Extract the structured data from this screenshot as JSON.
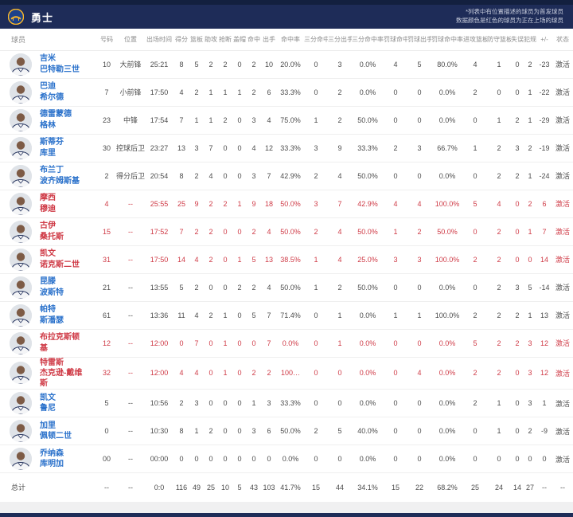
{
  "header": {
    "team": "勇士",
    "note_line1": "*列表中有位置描述的球员为首发球员",
    "note_line2": "数据颜色是红色的球员为正在上场的球员"
  },
  "colors": {
    "navy_bar": "#1e2c58",
    "active_red": "#cf3a46",
    "player_link_blue": "#2b72cb",
    "stat_text": "#4c4c4c"
  },
  "table": {
    "columns": [
      "球员",
      "号码",
      "位置",
      "出场时间",
      "得分",
      "篮板",
      "助攻",
      "抢断",
      "盖帽",
      "命中",
      "出手",
      "命中率",
      "三分命中",
      "三分出手",
      "三分命中率",
      "罚球命中",
      "罚球出手",
      "罚球命中率",
      "进攻篮板",
      "防守篮板",
      "失误",
      "犯规",
      "+/-",
      "状态"
    ],
    "rows": [
      {
        "name_lines": [
          "吉米",
          "巴特勒三世"
        ],
        "active": false,
        "stats": [
          "10",
          "大前锋",
          "25:21",
          "8",
          "5",
          "2",
          "2",
          "0",
          "2",
          "10",
          "20.0%",
          "0",
          "3",
          "0.0%",
          "4",
          "5",
          "80.0%",
          "4",
          "1",
          "0",
          "2",
          "-23",
          "激活"
        ]
      },
      {
        "name_lines": [
          "巴迪",
          "希尔德"
        ],
        "active": false,
        "stats": [
          "7",
          "小前锋",
          "17:50",
          "4",
          "2",
          "1",
          "1",
          "1",
          "2",
          "6",
          "33.3%",
          "0",
          "2",
          "0.0%",
          "0",
          "0",
          "0.0%",
          "2",
          "0",
          "0",
          "1",
          "-22",
          "激活"
        ]
      },
      {
        "name_lines": [
          "德雷蒙德",
          "格林"
        ],
        "active": false,
        "stats": [
          "23",
          "中锋",
          "17:54",
          "7",
          "1",
          "1",
          "2",
          "0",
          "3",
          "4",
          "75.0%",
          "1",
          "2",
          "50.0%",
          "0",
          "0",
          "0.0%",
          "0",
          "1",
          "2",
          "1",
          "-29",
          "激活"
        ]
      },
      {
        "name_lines": [
          "斯蒂芬",
          "库里"
        ],
        "active": false,
        "stats": [
          "30",
          "控球后卫",
          "23:27",
          "13",
          "3",
          "7",
          "0",
          "0",
          "4",
          "12",
          "33.3%",
          "3",
          "9",
          "33.3%",
          "2",
          "3",
          "66.7%",
          "1",
          "2",
          "3",
          "2",
          "-19",
          "激活"
        ]
      },
      {
        "name_lines": [
          "布兰丁",
          "波齐姆斯基"
        ],
        "active": false,
        "stats": [
          "2",
          "得分后卫",
          "20:54",
          "8",
          "2",
          "4",
          "0",
          "0",
          "3",
          "7",
          "42.9%",
          "2",
          "4",
          "50.0%",
          "0",
          "0",
          "0.0%",
          "0",
          "2",
          "2",
          "1",
          "-24",
          "激活"
        ]
      },
      {
        "name_lines": [
          "摩西",
          "穆迪"
        ],
        "active": true,
        "stats": [
          "4",
          "--",
          "25:55",
          "25",
          "9",
          "2",
          "2",
          "1",
          "9",
          "18",
          "50.0%",
          "3",
          "7",
          "42.9%",
          "4",
          "4",
          "100.0%",
          "5",
          "4",
          "0",
          "2",
          "6",
          "激活"
        ]
      },
      {
        "name_lines": [
          "古伊",
          "桑托斯"
        ],
        "active": true,
        "stats": [
          "15",
          "--",
          "17:52",
          "7",
          "2",
          "2",
          "0",
          "0",
          "2",
          "4",
          "50.0%",
          "2",
          "4",
          "50.0%",
          "1",
          "2",
          "50.0%",
          "0",
          "2",
          "0",
          "1",
          "7",
          "激活"
        ]
      },
      {
        "name_lines": [
          "凯文",
          "诺克斯二世"
        ],
        "active": true,
        "stats": [
          "31",
          "--",
          "17:50",
          "14",
          "4",
          "2",
          "0",
          "1",
          "5",
          "13",
          "38.5%",
          "1",
          "4",
          "25.0%",
          "3",
          "3",
          "100.0%",
          "2",
          "2",
          "0",
          "0",
          "14",
          "激活"
        ]
      },
      {
        "name_lines": [
          "昆滕",
          "波斯特"
        ],
        "active": false,
        "stats": [
          "21",
          "--",
          "13:55",
          "5",
          "2",
          "0",
          "0",
          "2",
          "2",
          "4",
          "50.0%",
          "1",
          "2",
          "50.0%",
          "0",
          "0",
          "0.0%",
          "0",
          "2",
          "3",
          "5",
          "-14",
          "激活"
        ]
      },
      {
        "name_lines": [
          "帕特",
          "斯潘瑟"
        ],
        "active": false,
        "stats": [
          "61",
          "--",
          "13:36",
          "11",
          "4",
          "2",
          "1",
          "0",
          "5",
          "7",
          "71.4%",
          "0",
          "1",
          "0.0%",
          "1",
          "1",
          "100.0%",
          "2",
          "2",
          "2",
          "1",
          "13",
          "激活"
        ]
      },
      {
        "name_lines": [
          "布拉克斯顿",
          "基"
        ],
        "active": true,
        "stats": [
          "12",
          "--",
          "12:00",
          "0",
          "7",
          "0",
          "1",
          "0",
          "0",
          "7",
          "0.0%",
          "0",
          "1",
          "0.0%",
          "0",
          "0",
          "0.0%",
          "5",
          "2",
          "2",
          "3",
          "12",
          "激活"
        ]
      },
      {
        "name_lines": [
          "特雷斯",
          "杰克逊-戴维",
          "斯"
        ],
        "active": true,
        "stats": [
          "32",
          "--",
          "12:00",
          "4",
          "4",
          "0",
          "1",
          "0",
          "2",
          "2",
          "100…",
          "0",
          "0",
          "0.0%",
          "0",
          "4",
          "0.0%",
          "2",
          "2",
          "0",
          "3",
          "12",
          "激活"
        ]
      },
      {
        "name_lines": [
          "凯文",
          "鲁尼"
        ],
        "active": false,
        "stats": [
          "5",
          "--",
          "10:56",
          "2",
          "3",
          "0",
          "0",
          "0",
          "1",
          "3",
          "33.3%",
          "0",
          "0",
          "0.0%",
          "0",
          "0",
          "0.0%",
          "2",
          "1",
          "0",
          "3",
          "1",
          "激活"
        ]
      },
      {
        "name_lines": [
          "加里",
          "佩顿二世"
        ],
        "active": false,
        "stats": [
          "0",
          "--",
          "10:30",
          "8",
          "1",
          "2",
          "0",
          "0",
          "3",
          "6",
          "50.0%",
          "2",
          "5",
          "40.0%",
          "0",
          "0",
          "0.0%",
          "0",
          "1",
          "0",
          "2",
          "-9",
          "激活"
        ]
      },
      {
        "name_lines": [
          "乔纳森",
          "库明加"
        ],
        "active": false,
        "stats": [
          "00",
          "--",
          "00:00",
          "0",
          "0",
          "0",
          "0",
          "0",
          "0",
          "0",
          "0.0%",
          "0",
          "0",
          "0.0%",
          "0",
          "0",
          "0.0%",
          "0",
          "0",
          "0",
          "0",
          "0",
          "激活"
        ]
      }
    ],
    "totals": {
      "label": "总计",
      "stats": [
        "--",
        "--",
        "0:0",
        "116",
        "49",
        "25",
        "10",
        "5",
        "43",
        "103",
        "41.7%",
        "15",
        "44",
        "34.1%",
        "15",
        "22",
        "68.2%",
        "25",
        "24",
        "14",
        "27",
        "--",
        "--"
      ]
    }
  }
}
